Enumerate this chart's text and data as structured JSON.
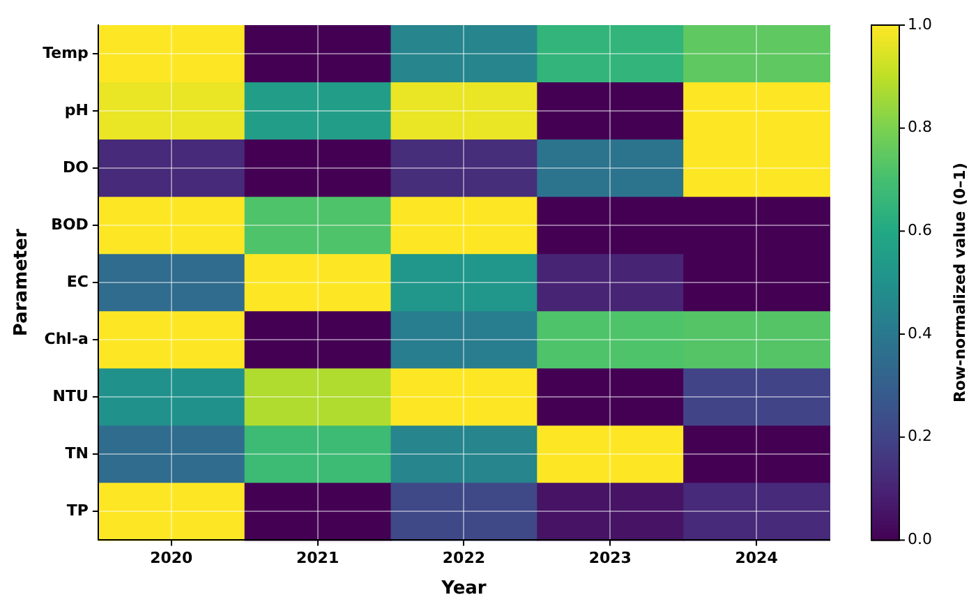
{
  "chart_data": {
    "type": "heatmap",
    "xlabel": "Year",
    "ylabel": "Parameter",
    "clabel": "Row-normalized value (0–1)",
    "categories": [
      "2020",
      "2021",
      "2022",
      "2023",
      "2024"
    ],
    "y_categories": [
      "Temp",
      "pH",
      "DO",
      "BOD",
      "EC",
      "Chl-a",
      "NTU",
      "TN",
      "TP"
    ],
    "cells": [
      [
        1.0,
        0.0,
        0.45,
        0.65,
        0.75
      ],
      [
        0.97,
        0.55,
        0.97,
        0.0,
        1.0
      ],
      [
        0.12,
        0.0,
        0.13,
        0.38,
        1.0
      ],
      [
        1.0,
        0.72,
        1.0,
        0.0,
        0.0
      ],
      [
        0.35,
        1.0,
        0.52,
        0.1,
        0.0
      ],
      [
        1.0,
        0.0,
        0.42,
        0.72,
        0.73
      ],
      [
        0.5,
        0.88,
        1.0,
        0.0,
        0.2
      ],
      [
        0.35,
        0.68,
        0.45,
        1.0,
        0.0
      ],
      [
        1.0,
        0.0,
        0.22,
        0.05,
        0.12
      ]
    ],
    "clim": [
      0,
      1
    ],
    "cticks": [
      {
        "value": 0,
        "label": "0.0"
      },
      {
        "value": 0.2,
        "label": "0.2"
      },
      {
        "value": 0.4,
        "label": "0.4"
      },
      {
        "value": 0.6,
        "label": "0.6"
      },
      {
        "value": 0.8,
        "label": "0.8"
      },
      {
        "value": 1,
        "label": "1.0"
      }
    ],
    "grid": true
  }
}
